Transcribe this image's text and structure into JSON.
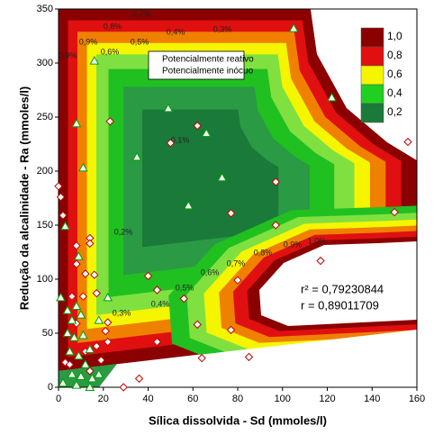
{
  "chart_data": {
    "type": "scatter",
    "x_label": "Sílica dissolvida - Sd (mmoles/l)",
    "y_label": "Redução da alcalinidade - Ra (mmoles/l)",
    "xlim": [
      0,
      160
    ],
    "ylim": [
      0,
      350
    ],
    "xticks": [
      0,
      20,
      40,
      60,
      80,
      100,
      120,
      140,
      160
    ],
    "yticks": [
      0,
      50,
      100,
      150,
      200,
      250,
      300,
      350
    ],
    "series": [
      {
        "name": "Potencialmente reativo",
        "color": "#c00000",
        "marker": "diamond",
        "x": [
          0,
          1,
          2,
          8,
          8,
          12,
          14,
          14,
          16,
          23,
          40,
          44,
          50,
          62,
          56,
          77,
          97,
          97,
          80,
          77,
          62,
          64,
          44,
          85,
          117,
          150,
          156,
          36,
          29,
          3,
          21,
          22,
          6,
          11,
          17,
          8,
          12,
          5,
          19,
          22,
          17,
          14
        ],
        "values": [
          186,
          176,
          159,
          131,
          114,
          105,
          138,
          133,
          104,
          246,
          103,
          90,
          226,
          242,
          82,
          161,
          190,
          150,
          99,
          53,
          58,
          27,
          42,
          28,
          117,
          162,
          227,
          8,
          0,
          23,
          52,
          42,
          84,
          84,
          87,
          59,
          33,
          21,
          25,
          60,
          38,
          15
        ]
      },
      {
        "name": "Potencialmente inócuo",
        "color": "#00a000",
        "marker": "triangle",
        "x": [
          8,
          16,
          11,
          35,
          49,
          66,
          73,
          58,
          105,
          122,
          3,
          9,
          1,
          4,
          8,
          6,
          10,
          4,
          7,
          11,
          5,
          9,
          14,
          12,
          6,
          10,
          15,
          18,
          2,
          8,
          14,
          22,
          18
        ],
        "values": [
          244,
          302,
          203,
          213,
          258,
          235,
          194,
          168,
          332,
          268,
          149,
          121,
          83,
          71,
          75,
          62,
          67,
          50,
          46,
          48,
          33,
          29,
          35,
          21,
          12,
          10,
          8,
          12,
          4,
          2,
          0,
          83,
          62
        ]
      }
    ],
    "legend": "top-left",
    "colorbar": {
      "ticks": [
        {
          "value": 1.0,
          "label": "1,0",
          "color": "#8b0000"
        },
        {
          "value": 0.8,
          "label": "0,8",
          "color": "#e01010"
        },
        {
          "value": 0.6,
          "label": "0,6",
          "color": "#f5f500"
        },
        {
          "value": 0.4,
          "label": "0,4",
          "color": "#20d020"
        },
        {
          "value": 0.2,
          "label": "0,2",
          "color": "#1a7a3a"
        }
      ]
    },
    "contour_labels": [
      "0,8%",
      "0,7%",
      "0,9%",
      "0,6%",
      "0,5%",
      "0,4%",
      "0,3%",
      "0,9%",
      "0,1%",
      "0,2%",
      "0,3%",
      "0,4%",
      "0,5%",
      "0,6%",
      "0,7%",
      "0,8%",
      "0,9%",
      "1,0%"
    ],
    "annotations": [
      "r² = 0,79230844",
      "r = 0,89011709"
    ]
  }
}
